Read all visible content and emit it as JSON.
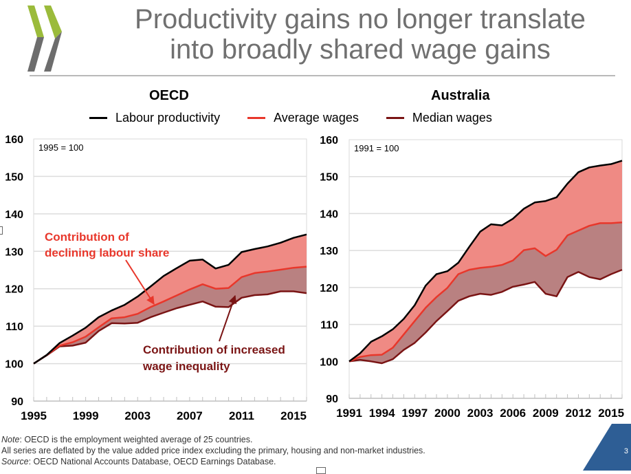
{
  "slide": {
    "title_line1": "Productivity gains no longer translate",
    "title_line2": "into broadly shared wage gains",
    "page_number": "3",
    "brand_colors": {
      "logo_green": "#9bbb3b",
      "logo_grey": "#6d6d6d",
      "badge_blue": "#2e5e95"
    }
  },
  "legend": {
    "items": [
      {
        "label": "Labour productivity",
        "color": "#000000"
      },
      {
        "label": "Average wages",
        "color": "#e8372b"
      },
      {
        "label": "Median wages",
        "color": "#7a1414"
      }
    ]
  },
  "notes": {
    "note_label": "Note",
    "note_text": ": OECD is the employment weighted average of 25 countries.",
    "line2": "All series are deflated by the value added price index excluding the primary, housing and non-market industries.",
    "source_label": "Source",
    "source_text": ": OECD National Accounts Database, OECD Earnings Database."
  },
  "chart_data": [
    {
      "type": "line",
      "title": "OECD",
      "base_label": "1995 = 100",
      "xlabel": "",
      "ylabel": "",
      "ylim": [
        90,
        160
      ],
      "yticks": [
        90,
        100,
        110,
        120,
        130,
        140,
        150,
        160
      ],
      "xlim": [
        1995,
        2016
      ],
      "xtick_labels": [
        "1995",
        "1999",
        "2003",
        "2007",
        "2011",
        "2015"
      ],
      "grid": true,
      "x": [
        1995,
        1996,
        1997,
        1998,
        1999,
        2000,
        2001,
        2002,
        2003,
        2004,
        2005,
        2006,
        2007,
        2008,
        2009,
        2010,
        2011,
        2012,
        2013,
        2014,
        2015,
        2016
      ],
      "series": [
        {
          "name": "Labour productivity",
          "color": "#000000",
          "values": [
            100,
            102.3,
            105.5,
            107.5,
            109.6,
            112.4,
            114.2,
            115.7,
            117.9,
            120.6,
            123.4,
            125.5,
            127.5,
            127.8,
            125.4,
            126.4,
            129.8,
            130.6,
            131.3,
            132.3,
            133.6,
            134.5
          ]
        },
        {
          "name": "Average wages",
          "color": "#e8372b",
          "values": [
            100,
            102.3,
            104.8,
            105.7,
            107.2,
            109.7,
            112.1,
            112.4,
            113.3,
            115.1,
            116.6,
            118.2,
            119.8,
            121.2,
            120.0,
            120.2,
            123.1,
            124.2,
            124.6,
            125.1,
            125.6,
            125.9
          ]
        },
        {
          "name": "Median wages",
          "color": "#7a1414",
          "values": [
            100,
            102.2,
            104.6,
            104.8,
            105.6,
            108.7,
            110.8,
            110.7,
            110.9,
            112.4,
            113.6,
            114.8,
            115.7,
            116.6,
            115.2,
            115.1,
            117.6,
            118.3,
            118.5,
            119.3,
            119.3,
            118.8
          ]
        }
      ],
      "annotations": [
        {
          "text_line1": "Contribution of",
          "text_line2": "declining labour share",
          "color": "#e8372b"
        },
        {
          "text_line1": "Contribution of increased",
          "text_line2": "wage inequality",
          "color": "#7a1414"
        }
      ],
      "fills": [
        {
          "between": [
            "Labour productivity",
            "Average wages"
          ],
          "color": "#ef8a84"
        },
        {
          "between": [
            "Average wages",
            "Median wages"
          ],
          "color": "#b98181"
        }
      ]
    },
    {
      "type": "line",
      "title": "Australia",
      "base_label": "1991 = 100",
      "xlabel": "",
      "ylabel": "",
      "ylim": [
        90,
        160
      ],
      "yticks": [
        90,
        100,
        110,
        120,
        130,
        140,
        150,
        160
      ],
      "xlim": [
        1991,
        2016
      ],
      "xtick_labels": [
        "1991",
        "1994",
        "1997",
        "2000",
        "2003",
        "2006",
        "2009",
        "2012",
        "2015"
      ],
      "grid": true,
      "x": [
        1991,
        1992,
        1993,
        1994,
        1995,
        1996,
        1997,
        1998,
        1999,
        2000,
        2001,
        2002,
        2003,
        2004,
        2005,
        2006,
        2007,
        2008,
        2009,
        2010,
        2011,
        2012,
        2013,
        2014,
        2015,
        2016
      ],
      "series": [
        {
          "name": "Labour productivity",
          "color": "#000000",
          "values": [
            100,
            102.2,
            105.3,
            106.8,
            108.7,
            111.5,
            115.2,
            120.5,
            123.6,
            124.4,
            126.7,
            131.0,
            135.1,
            137.1,
            136.8,
            138.6,
            141.3,
            143.0,
            143.4,
            144.4,
            148.1,
            151.2,
            152.5,
            153.0,
            153.4,
            154.3
          ]
        },
        {
          "name": "Average wages",
          "color": "#e8372b",
          "values": [
            100,
            101.2,
            101.7,
            101.8,
            103.7,
            107.3,
            110.9,
            114.5,
            117.4,
            119.9,
            123.6,
            124.8,
            125.3,
            125.6,
            126.1,
            127.3,
            130.1,
            130.6,
            128.5,
            130.2,
            134.1,
            135.4,
            136.7,
            137.4,
            137.4,
            137.6
          ]
        },
        {
          "name": "Median wages",
          "color": "#7a1414",
          "values": [
            100,
            100.4,
            100.0,
            99.5,
            100.6,
            103.1,
            105.0,
            107.8,
            110.9,
            113.6,
            116.4,
            117.6,
            118.3,
            118.0,
            118.8,
            120.2,
            120.8,
            121.5,
            118.3,
            117.6,
            122.8,
            124.2,
            122.8,
            122.2,
            123.6,
            124.8
          ]
        }
      ],
      "fills": [
        {
          "between": [
            "Labour productivity",
            "Average wages"
          ],
          "color": "#ef8a84"
        },
        {
          "between": [
            "Average wages",
            "Median wages"
          ],
          "color": "#b98181"
        }
      ]
    }
  ]
}
